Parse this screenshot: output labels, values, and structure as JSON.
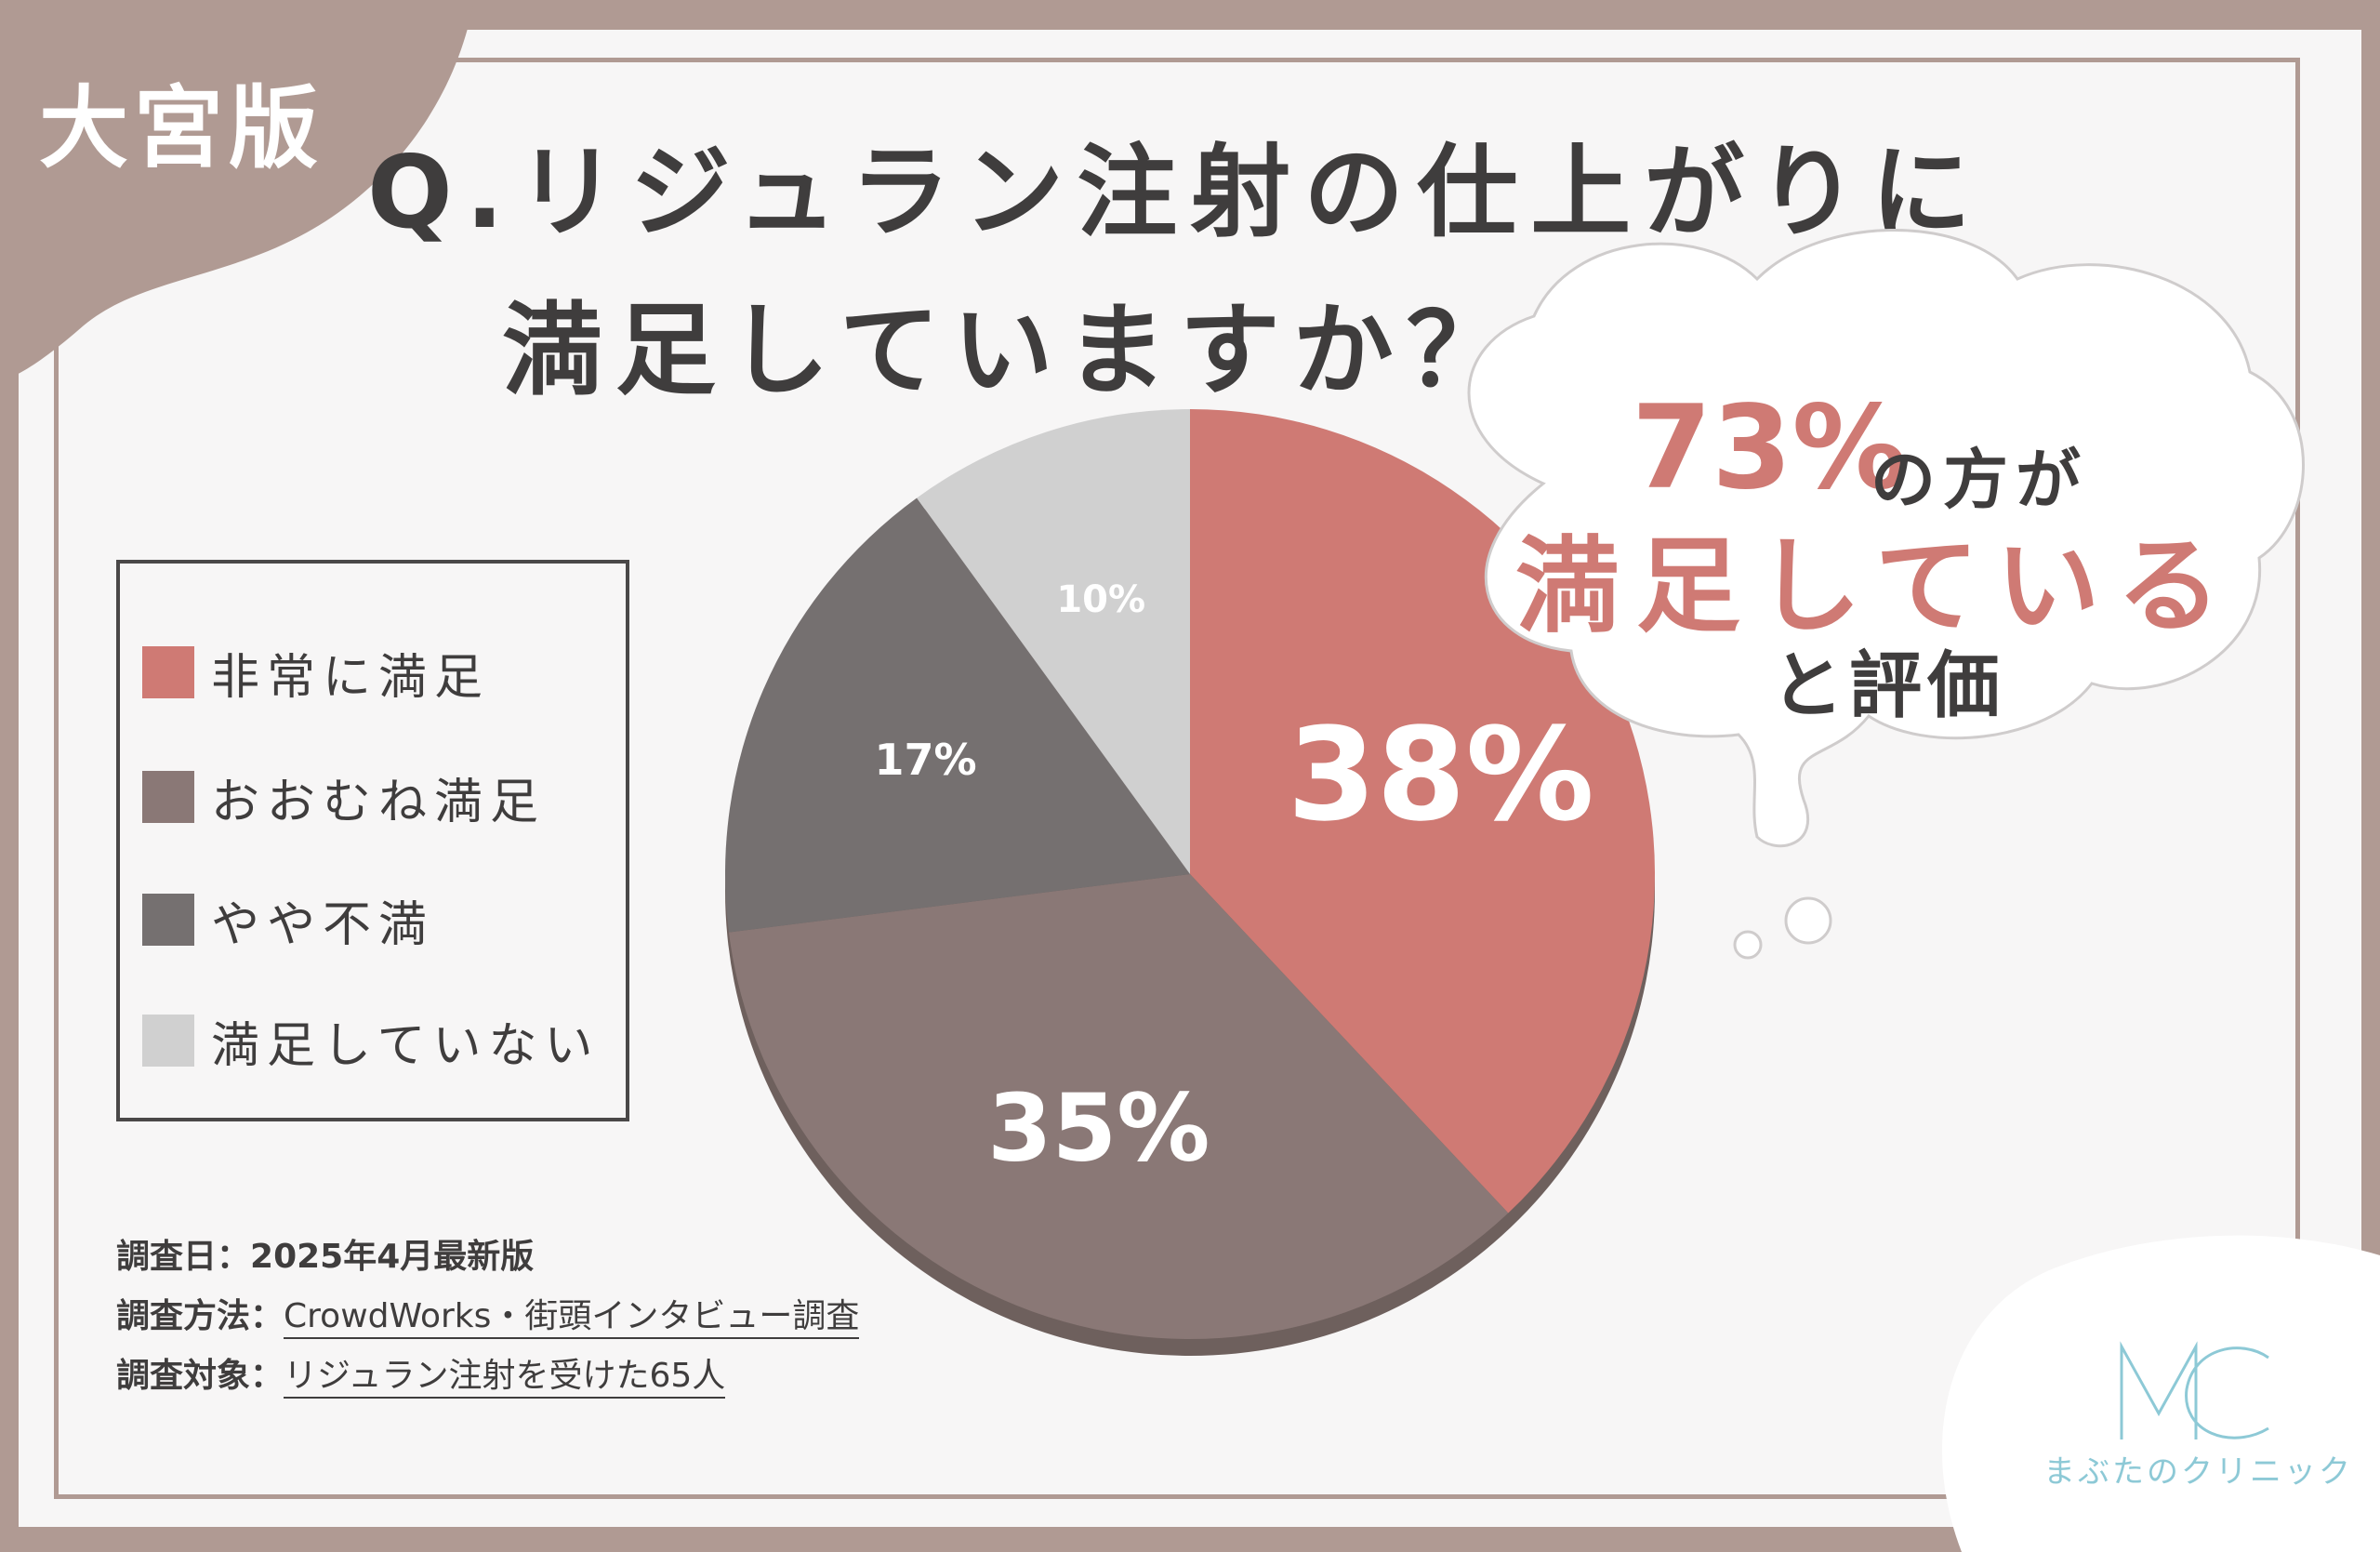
{
  "region_tag": "大宮版",
  "title": {
    "line1": "Q.リジュラン注射の仕上がりに",
    "line2": "満足していますか？"
  },
  "colors": {
    "very_satisfied": "#cf7a74",
    "mostly_satisfied": "#8a7876",
    "somewhat_unsatisfied": "#757070",
    "not_satisfied": "#d0d0d0",
    "frame": "#b09a93",
    "text": "#3f3d3d",
    "logo": "#8dc9d6"
  },
  "chart_data": {
    "type": "pie",
    "categories": [
      "非常に満足",
      "おおむね満足",
      "やや不満",
      "満足していない"
    ],
    "values": [
      38,
      35,
      17,
      10
    ],
    "labels": [
      "38%",
      "35%",
      "17%",
      "10%"
    ],
    "legend_position": "left",
    "start": "12 o'clock",
    "direction": "clockwise"
  },
  "legend": {
    "items": [
      {
        "label": "非常に満足",
        "color": "#cf7a74"
      },
      {
        "label": "おおむね満足",
        "color": "#8a7876"
      },
      {
        "label": "やや不満",
        "color": "#757070"
      },
      {
        "label": "満足していない",
        "color": "#d0d0d0"
      }
    ]
  },
  "callout": {
    "percent": "73%",
    "percent_tail": "の方が",
    "main": "満足している",
    "sub": "と評価"
  },
  "notes": [
    {
      "label": "調査日：",
      "value": "2025年4月最新版",
      "underline": false
    },
    {
      "label": "調査方法：",
      "value": "CrowdWorks・街頭インタビュー調査",
      "underline": true
    },
    {
      "label": "調査対象：",
      "value": "リジュラン注射を受けた65人",
      "underline": true
    }
  ],
  "logo": {
    "mark": "MC",
    "name": "まぶたのクリニック"
  }
}
